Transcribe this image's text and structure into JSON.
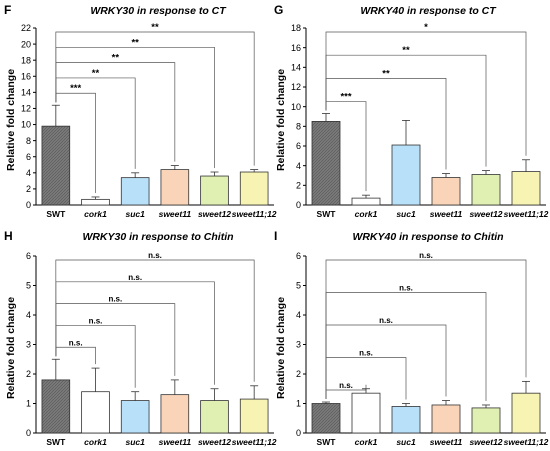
{
  "chart_data": [
    {
      "type": "bar",
      "panel_letter": "F",
      "title": "WRKY30 in response to CT",
      "ylabel": "Relative fold change",
      "xlabel": "",
      "ylim": [
        0,
        22
      ],
      "yticks": [
        0,
        2,
        4,
        6,
        8,
        10,
        12,
        14,
        16,
        18,
        20,
        22
      ],
      "categories": [
        "SWT",
        "cork1",
        "suc1",
        "sweet11",
        "sweet12",
        "sweet11;12"
      ],
      "values": [
        9.8,
        0.7,
        3.4,
        4.4,
        3.6,
        4.1
      ],
      "errors": [
        2.6,
        0.3,
        0.6,
        0.5,
        0.5,
        0.3
      ],
      "grid": false,
      "significance": [
        {
          "target": "cork1",
          "label": "***"
        },
        {
          "target": "suc1",
          "label": "**"
        },
        {
          "target": "sweet11",
          "label": "**"
        },
        {
          "target": "sweet12",
          "label": "**"
        },
        {
          "target": "sweet11;12",
          "label": "**"
        }
      ]
    },
    {
      "type": "bar",
      "panel_letter": "G",
      "title": "WRKY40 in response to CT",
      "ylabel": "Relative fold change",
      "xlabel": "",
      "ylim": [
        0,
        18
      ],
      "yticks": [
        0,
        2,
        4,
        6,
        8,
        10,
        12,
        14,
        16,
        18
      ],
      "categories": [
        "SWT",
        "cork1",
        "suc1",
        "sweet11",
        "sweet12",
        "sweet11;12"
      ],
      "values": [
        8.5,
        0.7,
        6.1,
        2.8,
        3.1,
        3.4
      ],
      "errors": [
        0.8,
        0.3,
        2.5,
        0.4,
        0.4,
        1.2
      ],
      "grid": false,
      "significance": [
        {
          "target": "cork1",
          "label": "***"
        },
        {
          "target": "sweet11",
          "label": "**"
        },
        {
          "target": "sweet12",
          "label": "**"
        },
        {
          "target": "sweet11;12",
          "label": "*"
        }
      ]
    },
    {
      "type": "bar",
      "panel_letter": "H",
      "title": "WRKY30 in response to Chitin",
      "ylabel": "Relative fold change",
      "xlabel": "",
      "ylim": [
        0,
        6
      ],
      "yticks": [
        0,
        1,
        2,
        3,
        4,
        5,
        6
      ],
      "categories": [
        "SWT",
        "cork1",
        "suc1",
        "sweet11",
        "sweet12",
        "sweet11;12"
      ],
      "values": [
        1.8,
        1.4,
        1.1,
        1.3,
        1.1,
        1.15
      ],
      "errors": [
        0.7,
        0.8,
        0.3,
        0.5,
        0.4,
        0.45
      ],
      "grid": false,
      "significance": [
        {
          "target": "cork1",
          "label": "n.s."
        },
        {
          "target": "suc1",
          "label": "n.s."
        },
        {
          "target": "sweet11",
          "label": "n.s."
        },
        {
          "target": "sweet12",
          "label": "n.s."
        },
        {
          "target": "sweet11;12",
          "label": "n.s."
        }
      ]
    },
    {
      "type": "bar",
      "panel_letter": "I",
      "title": "WRKY40 in response to Chitin",
      "ylabel": "Relative fold change",
      "xlabel": "",
      "ylim": [
        0,
        6
      ],
      "yticks": [
        0,
        1,
        2,
        3,
        4,
        5,
        6
      ],
      "categories": [
        "SWT",
        "cork1",
        "suc1",
        "sweet11",
        "sweet12",
        "sweet11;12"
      ],
      "values": [
        1.0,
        1.35,
        0.9,
        0.95,
        0.85,
        1.35
      ],
      "errors": [
        0.05,
        0.15,
        0.1,
        0.15,
        0.1,
        0.4
      ],
      "grid": false,
      "significance": [
        {
          "target": "cork1",
          "label": "n.s."
        },
        {
          "target": "suc1",
          "label": "n.s."
        },
        {
          "target": "sweet11",
          "label": "n.s."
        },
        {
          "target": "sweet12",
          "label": "n.s."
        },
        {
          "target": "sweet11;12",
          "label": "n.s."
        }
      ]
    }
  ],
  "colors": {
    "bar_fills": [
      "#767676",
      "#ffffff",
      "#b8e0f8",
      "#fad4b8",
      "#dff0b2",
      "#f7f3b2"
    ],
    "bar_stroke": "#333333",
    "swt_hatch": "#5a5a5a",
    "bracket": "#555555"
  }
}
